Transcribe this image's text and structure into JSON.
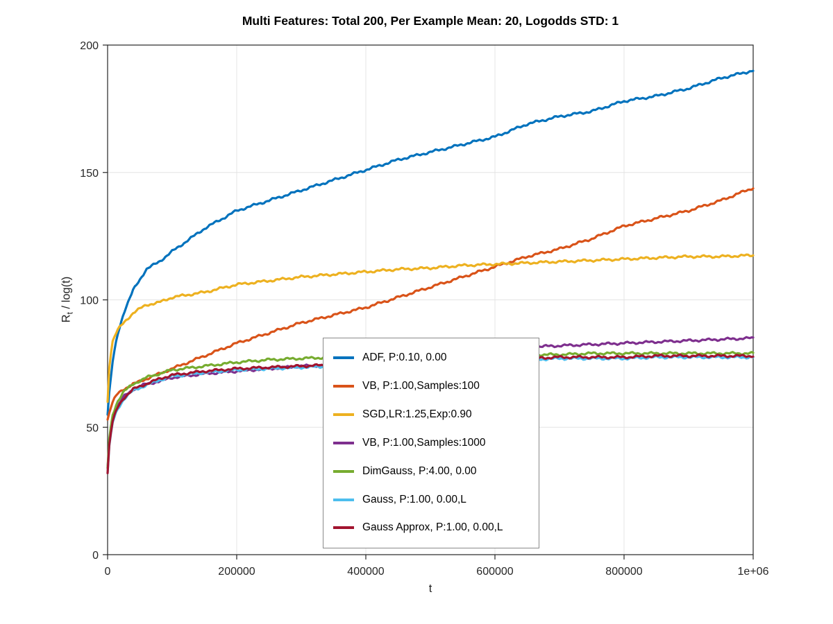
{
  "figure": {
    "title": "Multi Features: Total 200, Per Example Mean: 20, Logodds STD: 1",
    "xlabel": "t",
    "ylabel_base": "R",
    "ylabel_sub": "t",
    "ylabel_rest": " / log(t)"
  },
  "chart_data": {
    "type": "line",
    "title": "Multi Features: Total 200, Per Example Mean: 20, Logodds STD: 1",
    "xlabel": "t",
    "ylabel": "R_t / log(t)",
    "xlim": [
      0,
      1000000
    ],
    "ylim": [
      0,
      200
    ],
    "x_ticks": [
      0,
      200000,
      400000,
      600000,
      800000,
      1000000
    ],
    "x_tick_labels": [
      "0",
      "200000",
      "400000",
      "600000",
      "800000",
      "1e+06"
    ],
    "y_ticks": [
      0,
      50,
      100,
      150,
      200
    ],
    "y_tick_labels": [
      "0",
      "50",
      "100",
      "150",
      "200"
    ],
    "grid": true,
    "legend_position": "inside-lower-center",
    "x": [
      0,
      3000,
      8000,
      15000,
      25000,
      40000,
      60000,
      80000,
      100000,
      150000,
      200000,
      250000,
      300000,
      350000,
      400000,
      450000,
      500000,
      550000,
      600000,
      650000,
      700000,
      750000,
      800000,
      850000,
      900000,
      950000,
      1000000
    ],
    "series": [
      {
        "name": "ADF, P:0.10, 0.00",
        "color": "#0072BD",
        "values": [
          55,
          65,
          76,
          86,
          95,
          104,
          112,
          115,
          119,
          128,
          135,
          139,
          143,
          147,
          151,
          155,
          158,
          161,
          164,
          169,
          172,
          174,
          178,
          180,
          183,
          187,
          190
        ]
      },
      {
        "name": "VB, P:1.00,Samples:100",
        "color": "#D95319",
        "values": [
          53,
          56,
          60,
          63,
          65,
          67,
          69,
          71,
          73,
          78,
          83,
          87,
          91,
          94,
          97,
          101,
          105,
          109,
          113,
          117,
          120,
          124,
          129,
          132,
          135,
          139,
          144
        ]
      },
      {
        "name": "SGD,LR:1.25,Exp:0.90",
        "color": "#EDB120",
        "values": [
          60,
          75,
          84,
          88,
          91,
          95,
          98,
          99,
          101,
          103,
          106,
          107.5,
          109,
          110,
          111,
          112,
          112.5,
          113.5,
          114,
          114.5,
          115,
          115.5,
          116,
          116.5,
          117,
          117,
          117.5
        ]
      },
      {
        "name": "VB, P:1.00,Samples:1000",
        "color": "#7E2F8E",
        "values": [
          34,
          45,
          53,
          58,
          62,
          65,
          67,
          68,
          69.5,
          71,
          72,
          73,
          74,
          74.5,
          75.5,
          76.5,
          77.5,
          78.5,
          79.5,
          81.5,
          82,
          82.5,
          83,
          83.5,
          84,
          84.5,
          85
        ]
      },
      {
        "name": "DimGauss, P:4.00, 0.00",
        "color": "#77AC30",
        "values": [
          34,
          47,
          55,
          60,
          64,
          67,
          69.5,
          71,
          72.5,
          74,
          75.5,
          76.5,
          77,
          77.5,
          77.5,
          78,
          78,
          78,
          78.5,
          78.5,
          78.5,
          79,
          79,
          79,
          79,
          79,
          79
        ]
      },
      {
        "name": "Gauss, P:1.00, 0.00,L",
        "color": "#4DBEEE",
        "values": [
          32,
          44,
          52,
          57,
          61,
          64.5,
          66.5,
          68.5,
          70,
          71.5,
          72.5,
          73,
          73.5,
          74,
          75,
          75.5,
          76,
          76.5,
          76.5,
          76.5,
          77,
          77,
          77,
          77.5,
          77.5,
          77.5,
          77.5
        ]
      },
      {
        "name": "Gauss Approx, P:1.00, 0.00,L",
        "color": "#A2142F",
        "values": [
          32,
          44.5,
          52.5,
          57.5,
          61.5,
          65,
          67,
          69,
          70.5,
          72,
          73,
          73.5,
          74,
          74.5,
          75.5,
          76,
          76.5,
          77,
          77,
          77,
          77.5,
          77.5,
          77.5,
          78,
          78,
          78,
          78
        ]
      }
    ]
  }
}
